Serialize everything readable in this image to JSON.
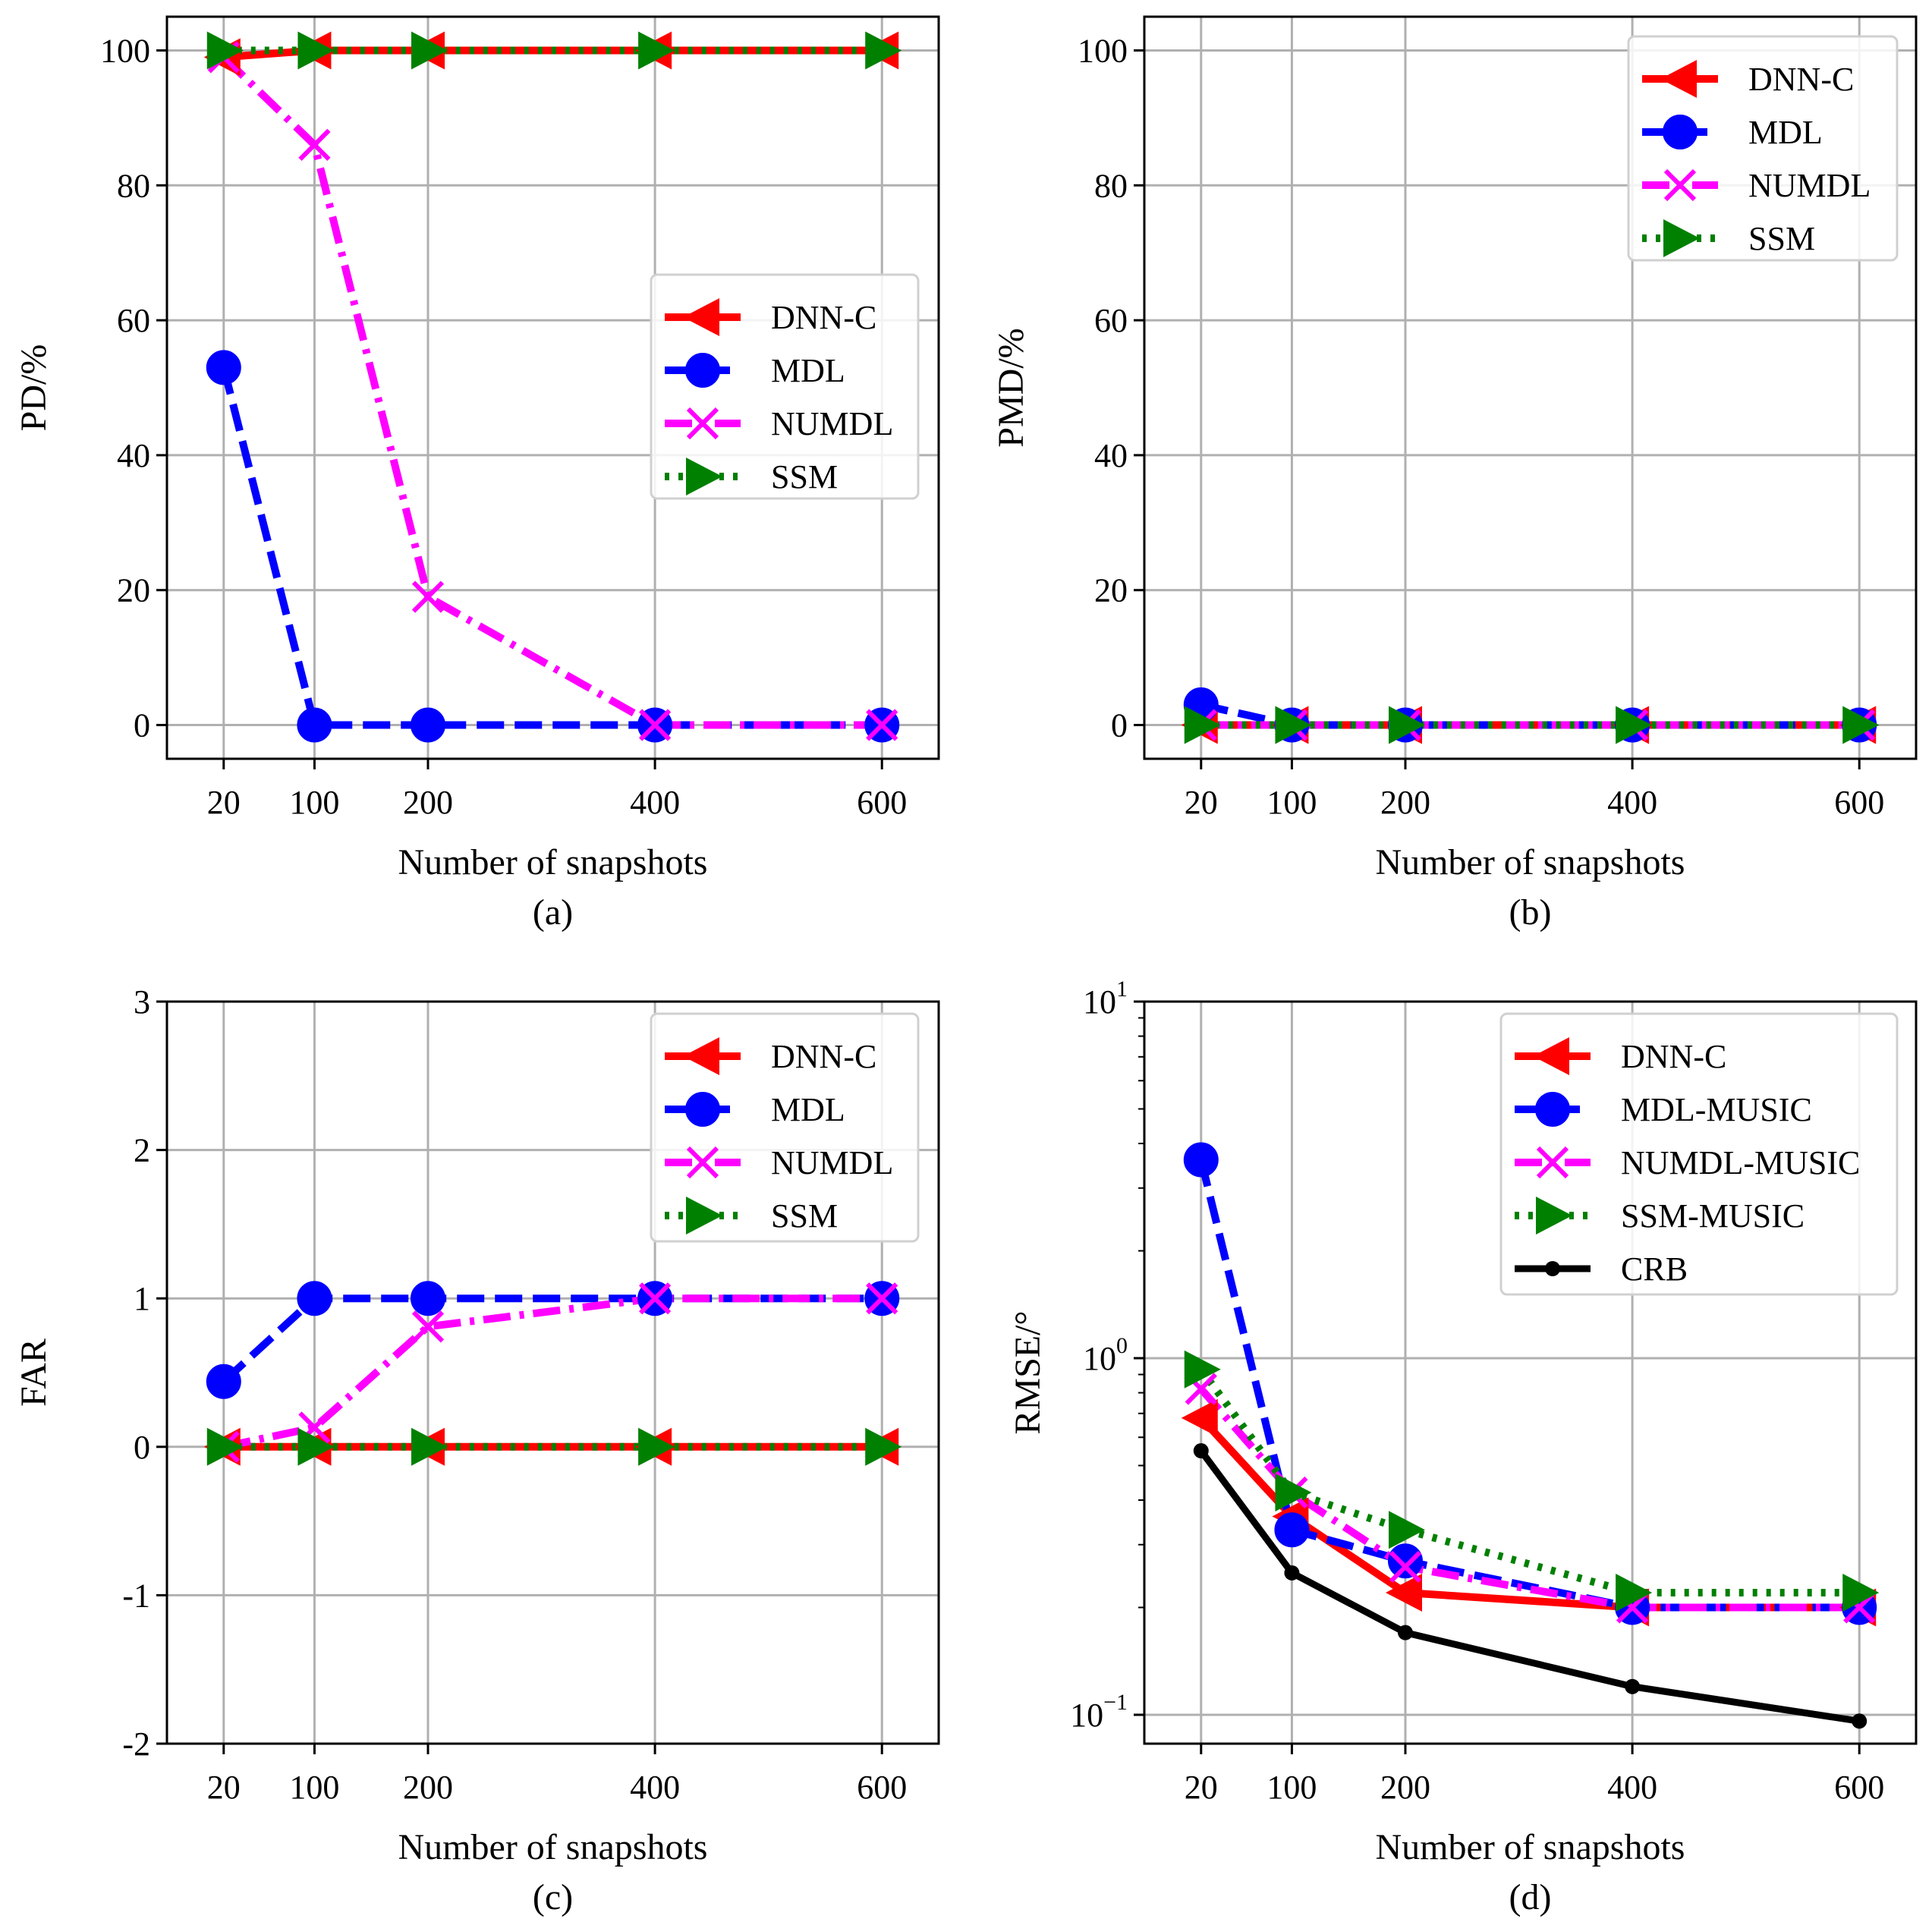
{
  "chart_data": [
    {
      "type": "line",
      "panel_label": "(a)",
      "xlabel": "Number of snapshots",
      "ylabel": "PD/%",
      "x": [
        20,
        100,
        200,
        400,
        600
      ],
      "xticks": [
        "20",
        "100",
        "200",
        "400",
        "600"
      ],
      "yscale": "linear",
      "ylim": [
        -5,
        105
      ],
      "yticks": [
        0,
        20,
        40,
        60,
        80,
        100
      ],
      "ytick_labels": [
        "0",
        "20",
        "40",
        "60",
        "80",
        "100"
      ],
      "grid": true,
      "legend_position": "center-right",
      "series": [
        {
          "name": "DNN-C",
          "values": [
            99,
            100,
            100,
            100,
            100
          ],
          "color": "#ff0000",
          "dash": "solid",
          "marker": "triangle-left"
        },
        {
          "name": "MDL",
          "values": [
            53,
            0,
            0,
            0,
            0
          ],
          "color": "#0000ff",
          "dash": "dashed",
          "marker": "circle"
        },
        {
          "name": "NUMDL",
          "values": [
            99,
            86,
            19,
            0,
            0
          ],
          "color": "#ff00ff",
          "dash": "dashdot",
          "marker": "x"
        },
        {
          "name": "SSM",
          "values": [
            100,
            100,
            100,
            100,
            100
          ],
          "color": "#008000",
          "dash": "dotted",
          "marker": "triangle-right"
        }
      ]
    },
    {
      "type": "line",
      "panel_label": "(b)",
      "xlabel": "Number of snapshots",
      "ylabel": "PMD/%",
      "x": [
        20,
        100,
        200,
        400,
        600
      ],
      "xticks": [
        "20",
        "100",
        "200",
        "400",
        "600"
      ],
      "yscale": "linear",
      "ylim": [
        -5,
        105
      ],
      "yticks": [
        0,
        20,
        40,
        60,
        80,
        100
      ],
      "ytick_labels": [
        "0",
        "20",
        "40",
        "60",
        "80",
        "100"
      ],
      "grid": true,
      "legend_position": "top-right",
      "series": [
        {
          "name": "DNN-C",
          "values": [
            0,
            0,
            0,
            0,
            0
          ],
          "color": "#ff0000",
          "dash": "solid",
          "marker": "triangle-left"
        },
        {
          "name": "MDL",
          "values": [
            3,
            0,
            0,
            0,
            0
          ],
          "color": "#0000ff",
          "dash": "dashed",
          "marker": "circle"
        },
        {
          "name": "NUMDL",
          "values": [
            0,
            0,
            0,
            0,
            0
          ],
          "color": "#ff00ff",
          "dash": "dashdot",
          "marker": "x"
        },
        {
          "name": "SSM",
          "values": [
            0,
            0,
            0,
            0,
            0
          ],
          "color": "#008000",
          "dash": "dotted",
          "marker": "triangle-right"
        }
      ]
    },
    {
      "type": "line",
      "panel_label": "(c)",
      "xlabel": "Number of snapshots",
      "ylabel": "FAR",
      "x": [
        20,
        100,
        200,
        400,
        600
      ],
      "xticks": [
        "20",
        "100",
        "200",
        "400",
        "600"
      ],
      "yscale": "linear",
      "ylim": [
        -2,
        3
      ],
      "yticks": [
        -2,
        -1,
        0,
        1,
        2,
        3
      ],
      "ytick_labels": [
        "-2",
        "-1",
        "0",
        "1",
        "2",
        "3"
      ],
      "grid": true,
      "legend_position": "top-right",
      "series": [
        {
          "name": "DNN-C",
          "values": [
            0,
            0,
            0,
            0,
            0
          ],
          "color": "#ff0000",
          "dash": "solid",
          "marker": "triangle-left"
        },
        {
          "name": "MDL",
          "values": [
            0.44,
            1,
            1,
            1,
            1
          ],
          "color": "#0000ff",
          "dash": "dashed",
          "marker": "circle"
        },
        {
          "name": "NUMDL",
          "values": [
            0,
            0.13,
            0.81,
            1,
            1
          ],
          "color": "#ff00ff",
          "dash": "dashdot",
          "marker": "x"
        },
        {
          "name": "SSM",
          "values": [
            0,
            0,
            0,
            0,
            0
          ],
          "color": "#008000",
          "dash": "dotted",
          "marker": "triangle-right"
        }
      ]
    },
    {
      "type": "line",
      "panel_label": "(d)",
      "xlabel": "Number of snapshots",
      "ylabel": "RMSE/°",
      "x": [
        20,
        100,
        200,
        400,
        600
      ],
      "xticks": [
        "20",
        "100",
        "200",
        "400",
        "600"
      ],
      "yscale": "log",
      "ylim": [
        0.083,
        10
      ],
      "yticks": [
        0.1,
        1,
        10
      ],
      "ytick_labels": [
        {
          "base": "10",
          "exp": "−1"
        },
        {
          "base": "10",
          "exp": "0"
        },
        {
          "base": "10",
          "exp": "1"
        }
      ],
      "grid": true,
      "legend_position": "top-right",
      "series": [
        {
          "name": "DNN-C",
          "values": [
            0.68,
            0.36,
            0.22,
            0.2,
            0.2
          ],
          "color": "#ff0000",
          "dash": "solid",
          "marker": "triangle-left"
        },
        {
          "name": "MDL-MUSIC",
          "values": [
            3.6,
            0.33,
            0.27,
            0.2,
            0.2
          ],
          "color": "#0000ff",
          "dash": "dashed",
          "marker": "circle"
        },
        {
          "name": "NUMDL-MUSIC",
          "values": [
            0.82,
            0.42,
            0.26,
            0.2,
            0.2
          ],
          "color": "#ff00ff",
          "dash": "dashdot",
          "marker": "x"
        },
        {
          "name": "SSM-MUSIC",
          "values": [
            0.93,
            0.42,
            0.33,
            0.22,
            0.22
          ],
          "color": "#008000",
          "dash": "dotted",
          "marker": "triangle-right"
        },
        {
          "name": "CRB",
          "values": [
            0.55,
            0.25,
            0.17,
            0.12,
            0.096
          ],
          "color": "#000000",
          "dash": "solid",
          "marker": "dot"
        }
      ]
    }
  ]
}
